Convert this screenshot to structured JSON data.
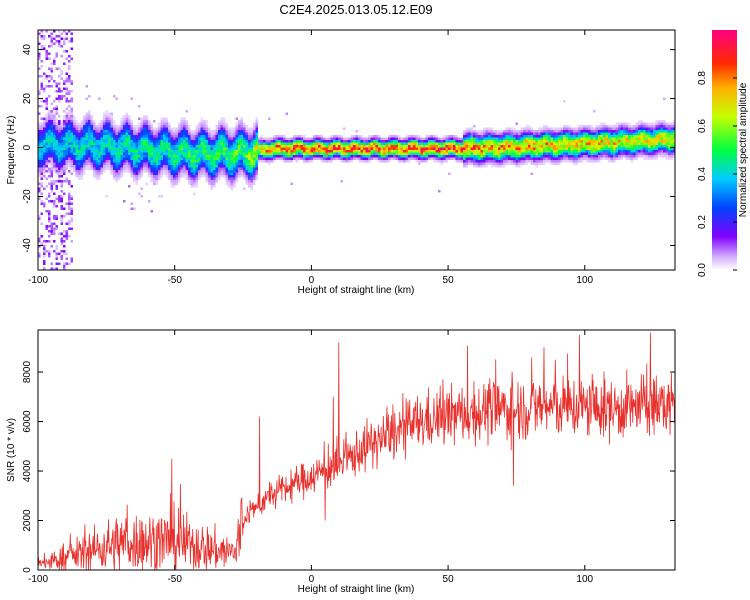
{
  "title": "C2E4.2025.013.05.12.E09",
  "chart_data": [
    {
      "type": "heatmap",
      "xlabel": "Height of straight line (km)",
      "ylabel": "Frequency (Hz)",
      "xlim": [
        -100,
        133
      ],
      "ylim": [
        -50,
        48
      ],
      "x_ticks": [
        -100,
        -50,
        0,
        50,
        100
      ],
      "y_ticks": [
        -40,
        -20,
        0,
        20,
        40
      ],
      "colorbar": {
        "label": "Normalized spectral amplitude",
        "range": [
          0,
          1
        ],
        "ticks": [
          0.0,
          0.2,
          0.4,
          0.6,
          0.8
        ],
        "colormap": "rainbow: white-violet-blue-cyan-green-yellow-orange-red-magenta"
      },
      "ridge": {
        "description_points": [
          {
            "x": -100,
            "f": 2,
            "amp": 0.4
          },
          {
            "x": -75,
            "f": 1,
            "amp": 0.45
          },
          {
            "x": -45,
            "f": -2,
            "amp": 0.5
          },
          {
            "x": -25,
            "f": -2,
            "amp": 0.55
          },
          {
            "x": -15,
            "f": 0,
            "amp": 0.85
          },
          {
            "x": 50,
            "f": 0,
            "amp": 0.9
          },
          {
            "x": 70,
            "f": 0.5,
            "amp": 0.8
          },
          {
            "x": 100,
            "f": 2,
            "amp": 0.75
          },
          {
            "x": 133,
            "f": 4,
            "amp": 0.7
          }
        ]
      }
    },
    {
      "type": "line",
      "xlabel": "Height of straight line (km)",
      "ylabel": "SNR (10 * v/v)",
      "xlim": [
        -100,
        133
      ],
      "ylim": [
        0,
        9700
      ],
      "x_ticks": [
        -100,
        -50,
        0,
        50,
        100
      ],
      "y_ticks": [
        0,
        2000,
        4000,
        6000,
        8000
      ],
      "series": [
        {
          "color": "#e8302c",
          "trend_points": [
            {
              "x": -100,
              "y": 200
            },
            {
              "x": -90,
              "y": 500
            },
            {
              "x": -70,
              "y": 1100
            },
            {
              "x": -50,
              "y": 1200
            },
            {
              "x": -35,
              "y": 800
            },
            {
              "x": -28,
              "y": 700
            },
            {
              "x": -24,
              "y": 2200
            },
            {
              "x": -15,
              "y": 3000
            },
            {
              "x": 0,
              "y": 3800
            },
            {
              "x": 10,
              "y": 4200
            },
            {
              "x": 20,
              "y": 5000
            },
            {
              "x": 40,
              "y": 6000
            },
            {
              "x": 55,
              "y": 6300
            },
            {
              "x": 70,
              "y": 6500
            },
            {
              "x": 90,
              "y": 6600
            },
            {
              "x": 110,
              "y": 6500
            },
            {
              "x": 133,
              "y": 6700
            }
          ],
          "spikes": [
            {
              "x": 10,
              "y": 9200
            },
            {
              "x": 8,
              "y": 7000
            },
            {
              "x": 5,
              "y": 2000
            },
            {
              "x": -19,
              "y": 6200
            },
            {
              "x": -51,
              "y": 4500
            },
            {
              "x": 85,
              "y": 9000
            },
            {
              "x": 98,
              "y": 9500
            },
            {
              "x": 124,
              "y": 9600
            },
            {
              "x": 74,
              "y": 3400
            }
          ]
        }
      ]
    }
  ]
}
